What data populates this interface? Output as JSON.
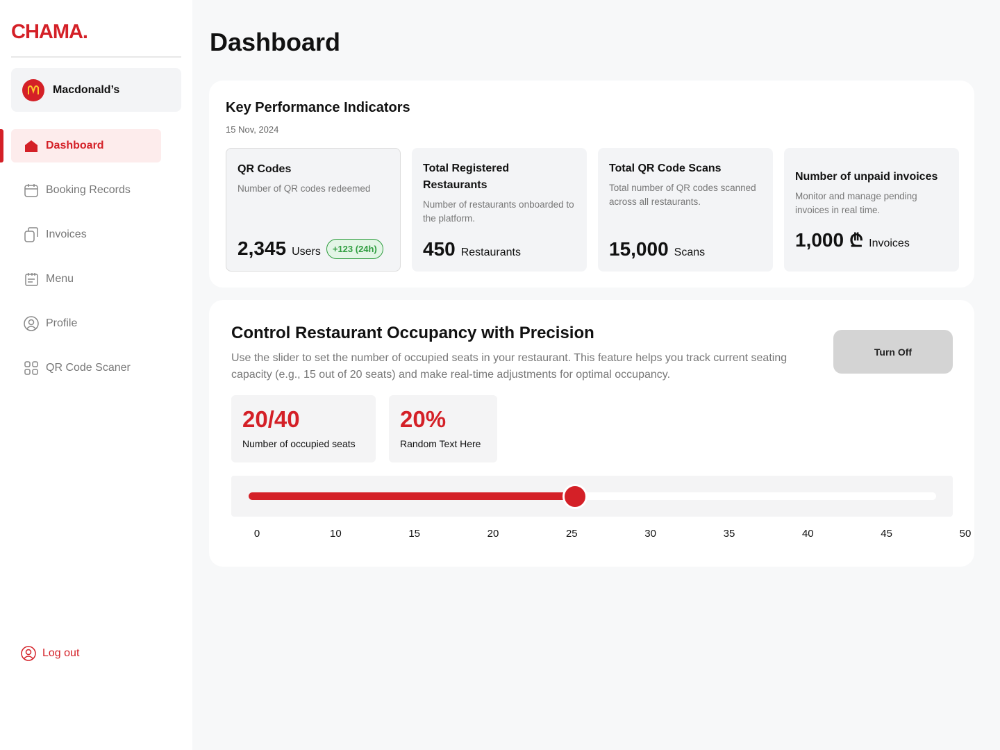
{
  "sidebar": {
    "logo": "CHAMA.",
    "account": "Macdonald’s",
    "nav": [
      "Dashboard",
      "Booking Records",
      "Invoices",
      "Menu",
      "Profile",
      "QR Code Scaner"
    ],
    "logout": "Log out"
  },
  "header": {
    "title": "Dashboard"
  },
  "kpi": {
    "title": "Key Performance Indicators",
    "date": "15 Nov, 2024",
    "cards": [
      {
        "title": "QR Codes",
        "description": "Number of QR codes redeemed",
        "value": "2,345",
        "unit": "Users",
        "badge": "+123 (24h)"
      },
      {
        "title": "Total Registered Restaurants",
        "description": "Number of restaurants onboarded to the platform.",
        "value": "450",
        "unit": "Restaurants"
      },
      {
        "title": "Total QR Code Scans",
        "description": "Total number of QR codes scanned across all restaurants.",
        "value": "15,000",
        "unit": "Scans"
      },
      {
        "title": "Number of unpaid invoices",
        "description": "Monitor and manage pending invoices in real time.",
        "value": "1,000",
        "currency": "₾",
        "unit": "Invoices"
      }
    ]
  },
  "occupancy": {
    "title": "Control Restaurant Occupancy with Precision",
    "description": "Use the slider to set the number of occupied seats in your restaurant. This feature helps you track current seating capacity (e.g., 15 out of 20 seats) and make real-time adjustments for optimal occupancy.",
    "button": "Turn Off",
    "stats": [
      {
        "value": "20/40",
        "label": "Number of occupied seats"
      },
      {
        "value": "20%",
        "label": "Random Text Here"
      }
    ],
    "slider_ticks": [
      "0",
      "10",
      "15",
      "20",
      "25",
      "30",
      "35",
      "40",
      "45",
      "50"
    ]
  }
}
